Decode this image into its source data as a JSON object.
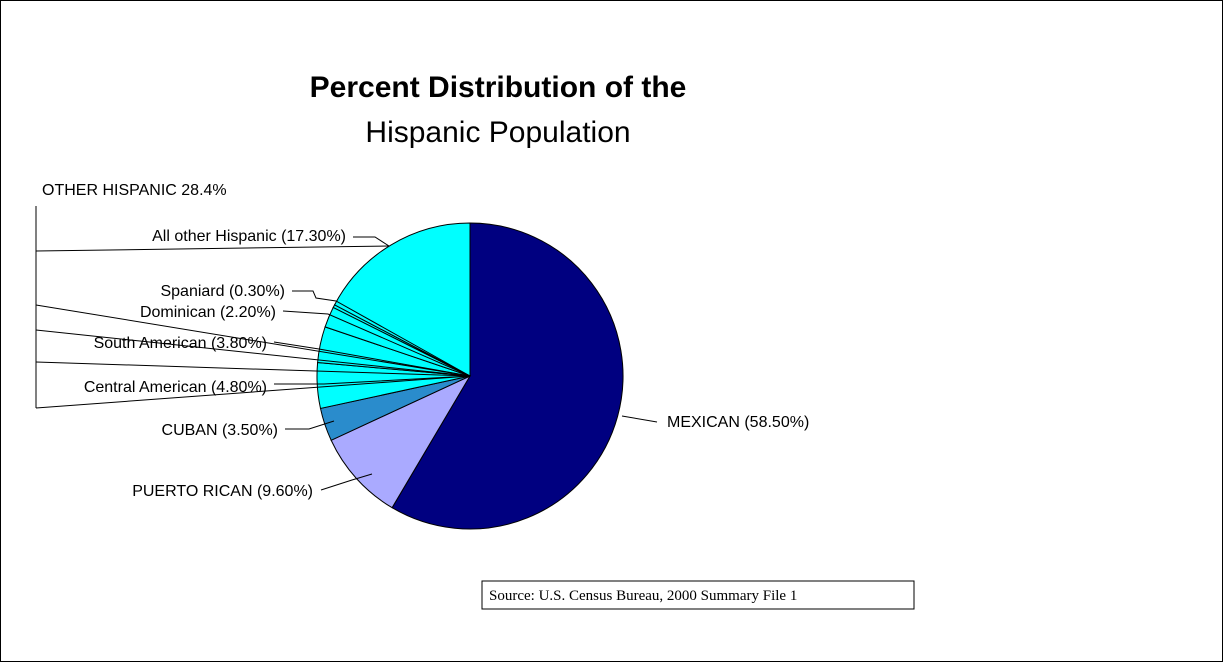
{
  "chart_data": {
    "type": "pie",
    "title": "Percent Distribution of the",
    "subtitle": "Hispanic Population",
    "group_label": "OTHER HISPANIC 28.4%",
    "source": "Source: U.S. Census Bureau, 2000 Summary File 1",
    "slices": [
      {
        "label": "MEXICAN (58.50%)",
        "value": 58.5,
        "color": "#000080"
      },
      {
        "label": "PUERTO RICAN (9.60%)",
        "value": 9.6,
        "color": "#aaaaff"
      },
      {
        "label": "CUBAN (3.50%)",
        "value": 3.5,
        "color": "#2a8ccc"
      },
      {
        "label": "Central American (4.80%)",
        "value": 4.8,
        "color": "#00ffff"
      },
      {
        "label": "South American (3.80%)",
        "value": 3.8,
        "color": "#00ffff"
      },
      {
        "label": "Dominican  (2.20%)",
        "value": 2.2,
        "color": "#00ffff"
      },
      {
        "label": "Spaniard (0.30%)",
        "value": 0.3,
        "color": "#00ffff"
      },
      {
        "label": "All other Hispanic (17.30%)",
        "value": 17.3,
        "color": "#00ffff"
      }
    ]
  }
}
